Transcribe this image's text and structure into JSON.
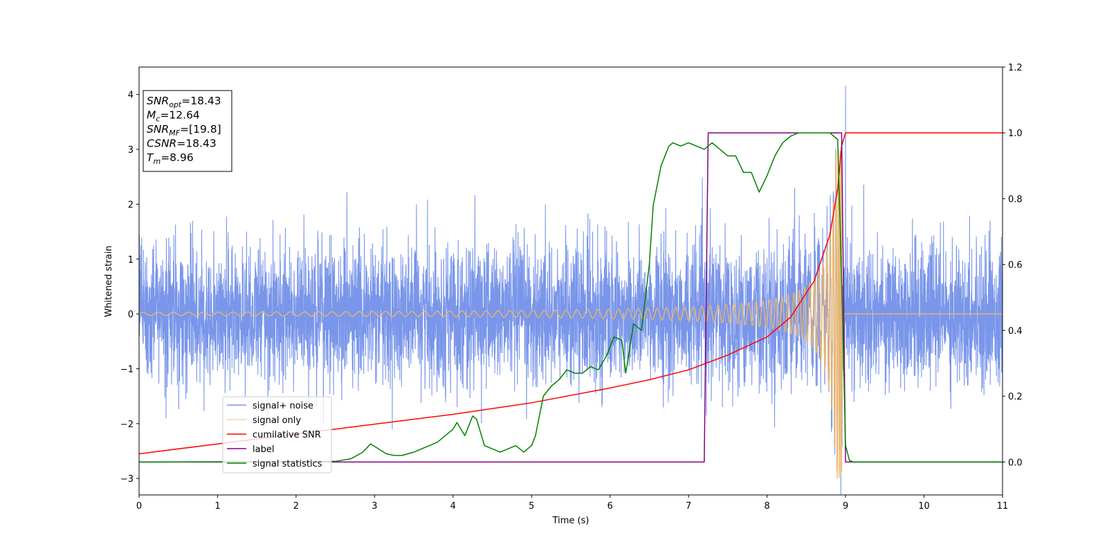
{
  "chart_data": {
    "type": "line",
    "xlabel": "Time (s)",
    "ylabel": "Whitened strain",
    "xlim": [
      0,
      11
    ],
    "ylim_left": [
      -3.3,
      4.5
    ],
    "ylim_right": [
      -0.1,
      1.2
    ],
    "x_ticks": [
      "0",
      "1",
      "2",
      "3",
      "4",
      "5",
      "6",
      "7",
      "8",
      "9",
      "10",
      "11"
    ],
    "y_left_ticks": [
      "−3",
      "−2",
      "−1",
      "0",
      "1",
      "2",
      "3",
      "4"
    ],
    "y_right_ticks": [
      "0.0",
      "0.2",
      "0.4",
      "0.6",
      "0.8",
      "1.0",
      "1.2"
    ],
    "grid": false,
    "legend_placement": "lower-left",
    "info_box": {
      "lines": [
        {
          "sym": "SNR",
          "sub": "opt",
          "val": "=18.43"
        },
        {
          "sym": "M",
          "sub": "c",
          "val": "=12.64"
        },
        {
          "sym": "SNR",
          "sub": "MF",
          "val": "=[19.8]"
        },
        {
          "sym": "CSNR",
          "sub": "",
          "val": "=18.43"
        },
        {
          "sym": "T",
          "sub": "m",
          "val": "=8.96"
        }
      ]
    },
    "series": [
      {
        "name": "signal+ noise",
        "axis": "left",
        "color": "#4169e1",
        "description_kind": "noise",
        "noise_std": 0.62,
        "spike": {
          "x": 9.0,
          "y": 4.15
        },
        "x_range": [
          0,
          11
        ]
      },
      {
        "name": "signal only",
        "axis": "left",
        "color": "#f4b860",
        "description_kind": "chirp",
        "merger_time": 8.95,
        "amplitude_start": 0.03,
        "amplitude_peak": 3.0,
        "x_range": [
          0,
          11
        ]
      },
      {
        "name": "cumilative SNR",
        "axis": "right",
        "color": "#ff0000",
        "x": [
          0,
          1,
          2,
          3,
          4,
          5,
          6,
          6.5,
          7,
          7.5,
          8,
          8.3,
          8.6,
          8.8,
          8.9,
          8.95,
          9.0,
          11
        ],
        "values": [
          0.025,
          0.055,
          0.085,
          0.115,
          0.145,
          0.18,
          0.225,
          0.25,
          0.28,
          0.325,
          0.38,
          0.44,
          0.55,
          0.69,
          0.83,
          0.96,
          1.0,
          1.0
        ]
      },
      {
        "name": "label",
        "axis": "right",
        "color": "#800080",
        "x": [
          0,
          7.2,
          7.25,
          8.95,
          9.0,
          11
        ],
        "values": [
          0.0,
          0.0,
          1.0,
          1.0,
          0.0,
          0.0
        ]
      },
      {
        "name": "signal statistics",
        "axis": "right",
        "color": "#008000",
        "x": [
          0,
          2.5,
          2.7,
          2.85,
          2.95,
          3.05,
          3.15,
          3.25,
          3.35,
          3.5,
          3.65,
          3.8,
          3.9,
          4.0,
          4.05,
          4.15,
          4.25,
          4.3,
          4.4,
          4.5,
          4.6,
          4.7,
          4.8,
          4.9,
          5.0,
          5.05,
          5.15,
          5.25,
          5.35,
          5.45,
          5.55,
          5.65,
          5.75,
          5.85,
          5.95,
          6.05,
          6.15,
          6.2,
          6.3,
          6.4,
          6.5,
          6.55,
          6.6,
          6.65,
          6.7,
          6.75,
          6.8,
          6.9,
          7.0,
          7.1,
          7.2,
          7.3,
          7.4,
          7.5,
          7.6,
          7.7,
          7.8,
          7.9,
          8.0,
          8.1,
          8.2,
          8.3,
          8.4,
          8.5,
          8.6,
          8.7,
          8.8,
          8.9,
          8.95,
          9.0,
          9.05,
          9.1,
          11
        ],
        "values": [
          0.0,
          0.002,
          0.01,
          0.03,
          0.055,
          0.04,
          0.025,
          0.02,
          0.02,
          0.03,
          0.045,
          0.06,
          0.08,
          0.1,
          0.12,
          0.08,
          0.14,
          0.13,
          0.05,
          0.04,
          0.03,
          0.04,
          0.05,
          0.03,
          0.05,
          0.08,
          0.2,
          0.23,
          0.25,
          0.28,
          0.27,
          0.27,
          0.29,
          0.28,
          0.32,
          0.38,
          0.37,
          0.27,
          0.42,
          0.4,
          0.6,
          0.78,
          0.84,
          0.9,
          0.93,
          0.96,
          0.97,
          0.96,
          0.97,
          0.96,
          0.95,
          0.97,
          0.95,
          0.93,
          0.93,
          0.88,
          0.88,
          0.82,
          0.87,
          0.93,
          0.97,
          0.99,
          1.0,
          1.0,
          1.0,
          1.0,
          1.0,
          0.98,
          0.56,
          0.05,
          0.005,
          0.0,
          0.0
        ]
      }
    ]
  }
}
